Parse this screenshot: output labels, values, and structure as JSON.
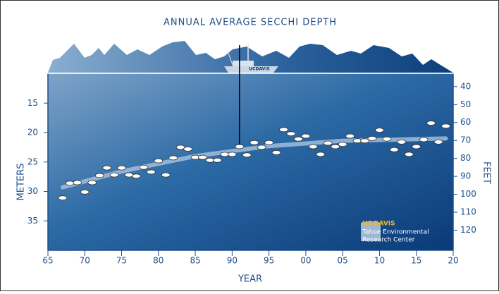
{
  "chart_data": {
    "type": "scatter",
    "title": "ANNUAL AVERAGE SECCHI DEPTH",
    "xlabel": "YEAR",
    "ylabel": "METERS",
    "y2label": "FEET",
    "xlim": [
      1965,
      2020
    ],
    "xticks": [
      {
        "value": 1965,
        "label": "65"
      },
      {
        "value": 1970,
        "label": "70"
      },
      {
        "value": 1975,
        "label": "75"
      },
      {
        "value": 1980,
        "label": "80"
      },
      {
        "value": 1985,
        "label": "85"
      },
      {
        "value": 1990,
        "label": "90"
      },
      {
        "value": 1995,
        "label": "95"
      },
      {
        "value": 2000,
        "label": "00"
      },
      {
        "value": 2005,
        "label": "05"
      },
      {
        "value": 2010,
        "label": "10"
      },
      {
        "value": 2015,
        "label": "15"
      },
      {
        "value": 2020,
        "label": "20"
      }
    ],
    "ylim": [
      10,
      40
    ],
    "yticks": [
      15,
      20,
      25,
      30,
      35
    ],
    "y_inverted": true,
    "y2lim": [
      32.8,
      131.2
    ],
    "y2ticks": [
      40,
      50,
      60,
      70,
      80,
      90,
      100,
      110,
      120
    ],
    "x": [
      1967,
      1968,
      1969,
      1970,
      1971,
      1972,
      1973,
      1974,
      1975,
      1976,
      1977,
      1978,
      1979,
      1980,
      1981,
      1982,
      1983,
      1984,
      1985,
      1986,
      1987,
      1988,
      1989,
      1990,
      1991,
      1992,
      1993,
      1994,
      1995,
      1996,
      1997,
      1998,
      1999,
      2000,
      2001,
      2002,
      2003,
      2004,
      2005,
      2006,
      2007,
      2008,
      2009,
      2010,
      2011,
      2012,
      2013,
      2014,
      2015,
      2016,
      2017,
      2018,
      2019
    ],
    "values": [
      31.1,
      28.6,
      28.5,
      30.1,
      28.5,
      27.3,
      26.0,
      27.2,
      26.0,
      27.2,
      27.4,
      25.9,
      26.7,
      24.8,
      27.2,
      24.3,
      22.5,
      22.8,
      24.2,
      24.2,
      24.7,
      24.7,
      23.7,
      23.7,
      22.4,
      23.8,
      21.7,
      22.5,
      21.7,
      23.4,
      19.5,
      20.2,
      21.1,
      20.6,
      22.4,
      23.7,
      21.8,
      22.4,
      22.0,
      20.6,
      21.4,
      21.4,
      21.0,
      19.6,
      21.1,
      22.9,
      21.6,
      23.7,
      22.4,
      21.2,
      18.4,
      21.6,
      18.9
    ],
    "trend": {
      "x": [
        1967,
        1975,
        1985,
        1995,
        2005,
        2019
      ],
      "values": [
        29.3,
        26.6,
        24.0,
        22.3,
        21.4,
        21.0
      ]
    },
    "boat_label": "UCDAVIS",
    "logo": {
      "uc": "UC",
      "davis": "DAVIS",
      "line1": "Tahoe Environmental",
      "line2": "Research Center"
    }
  }
}
